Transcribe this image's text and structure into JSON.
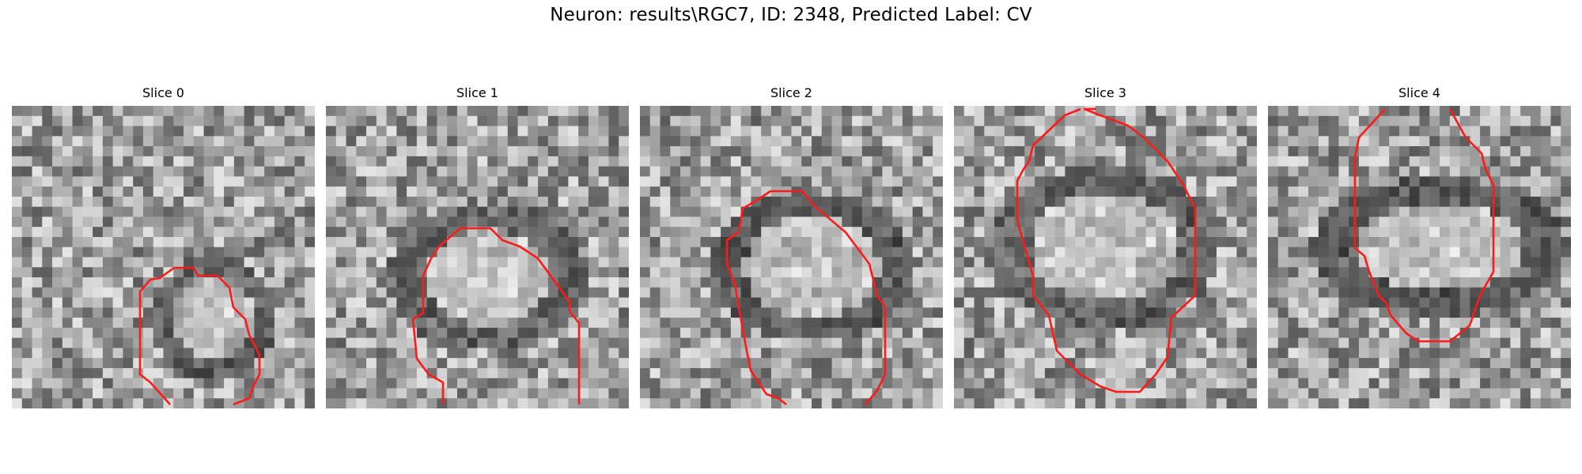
{
  "title": "Neuron: results\\RGC7, ID: 2348, Predicted Label: CV",
  "contour_color": "#ff1a1a",
  "panels": [
    {
      "label": "Slice 0",
      "seed": 11,
      "dark_ring": 0.55,
      "bright_core": 0.5
    },
    {
      "label": "Slice 1",
      "seed": 23,
      "dark_ring": 0.5,
      "bright_core": 0.6
    },
    {
      "label": "Slice 2",
      "seed": 37,
      "dark_ring": 0.6,
      "bright_core": 0.55
    },
    {
      "label": "Slice 3",
      "seed": 41,
      "dark_ring": 0.5,
      "bright_core": 0.5
    },
    {
      "label": "Slice 4",
      "seed": 59,
      "dark_ring": 0.55,
      "bright_core": 0.6
    }
  ]
}
